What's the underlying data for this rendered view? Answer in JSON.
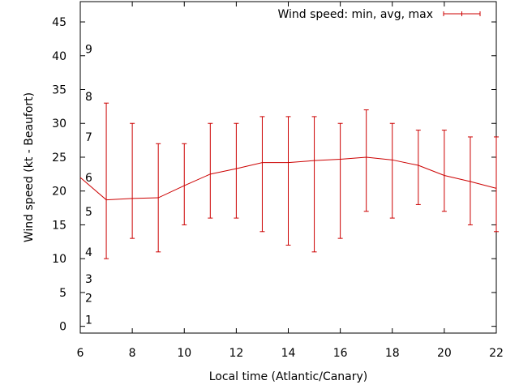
{
  "chart_data": {
    "type": "line",
    "xlabel": "Local time (Atlantic/Canary)",
    "ylabel": "Wind speed (kt - Beaufort)",
    "xlim": [
      6,
      22
    ],
    "ylim": [
      -1,
      48
    ],
    "xticks": [
      6,
      8,
      10,
      12,
      14,
      16,
      18,
      20,
      22
    ],
    "yticks": [
      0,
      5,
      10,
      15,
      20,
      25,
      30,
      35,
      40,
      45
    ],
    "legend_position": "top-right",
    "series": [
      {
        "name": "Wind speed: min, avg, max",
        "color": "#cc0000",
        "x": [
          6,
          7,
          8,
          9,
          10,
          11,
          12,
          13,
          14,
          15,
          16,
          17,
          18,
          19,
          20,
          21,
          22
        ],
        "avg": [
          22,
          18.7,
          18.9,
          19.0,
          20.8,
          22.5,
          23.3,
          24.2,
          24.2,
          24.5,
          24.7,
          25.0,
          24.6,
          23.8,
          22.3,
          21.4,
          20.4
        ],
        "min": [
          null,
          10,
          13,
          11,
          15,
          16,
          16,
          14,
          12,
          11,
          13,
          17,
          16,
          18,
          17,
          15,
          14
        ],
        "max": [
          null,
          33,
          30,
          27,
          27,
          30,
          30,
          31,
          31,
          31,
          30,
          32,
          30,
          29,
          29,
          28,
          28
        ]
      }
    ],
    "beaufort_labels": [
      {
        "label": "1",
        "kt": 1
      },
      {
        "label": "2",
        "kt": 4.2
      },
      {
        "label": "3",
        "kt": 7
      },
      {
        "label": "4",
        "kt": 11
      },
      {
        "label": "5",
        "kt": 17
      },
      {
        "label": "6",
        "kt": 22
      },
      {
        "label": "7",
        "kt": 28
      },
      {
        "label": "8",
        "kt": 34
      },
      {
        "label": "9",
        "kt": 41
      }
    ]
  }
}
